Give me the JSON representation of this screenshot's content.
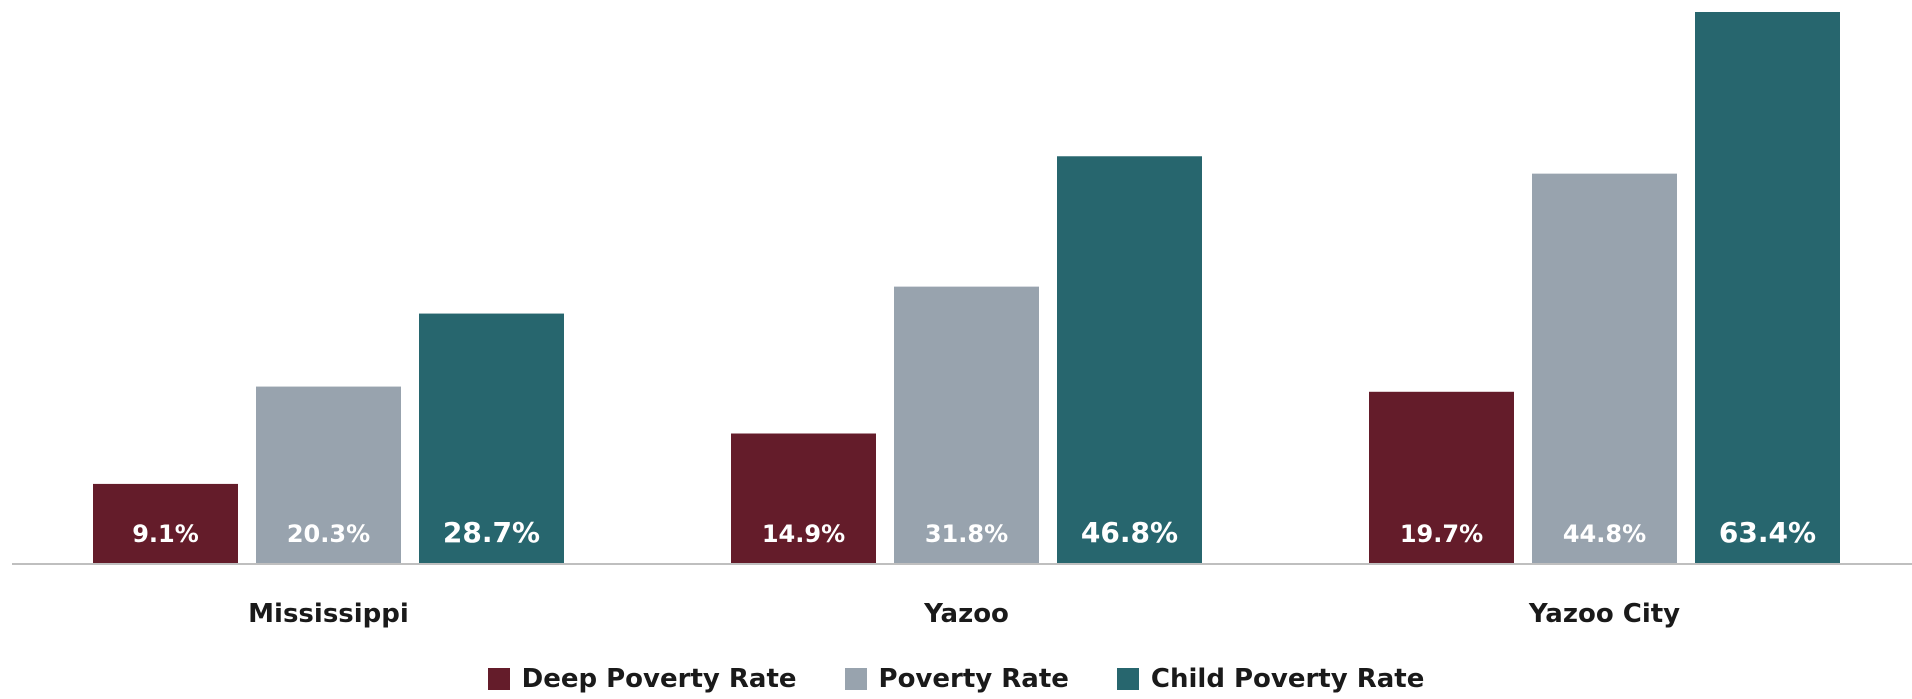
{
  "chart_data": {
    "type": "bar",
    "categories": [
      "Mississippi",
      "Yazoo",
      "Yazoo City"
    ],
    "series": [
      {
        "name": "Deep Poverty Rate",
        "color": "#641c2a",
        "values": [
          9.1,
          14.9,
          19.7
        ],
        "labels": [
          "9.1%",
          "14.9%",
          "19.7%"
        ]
      },
      {
        "name": "Poverty Rate",
        "color": "#98a3ae",
        "values": [
          20.3,
          31.8,
          44.8
        ],
        "labels": [
          "20.3%",
          "31.8%",
          "44.8%"
        ]
      },
      {
        "name": "Child Poverty Rate",
        "color": "#27666e",
        "values": [
          28.7,
          46.8,
          63.4
        ],
        "labels": [
          "28.7%",
          "46.8%",
          "63.4%"
        ]
      }
    ],
    "ylim": [
      0,
      63.4
    ],
    "grid": false,
    "legend_position": "bottom"
  }
}
